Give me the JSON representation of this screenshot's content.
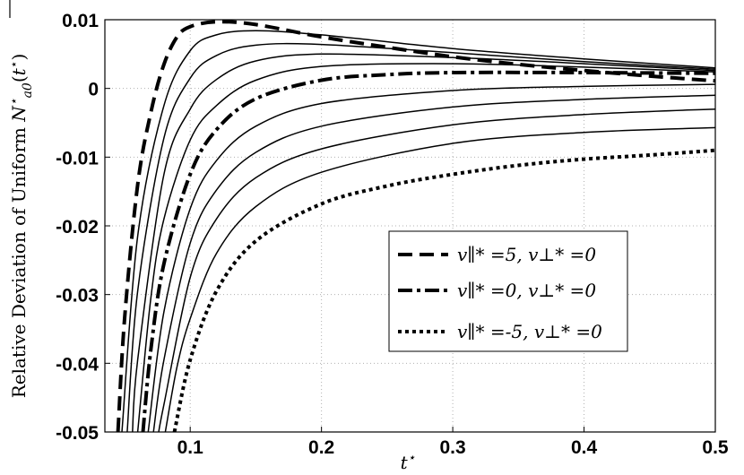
{
  "chart_data": {
    "type": "line",
    "title": "",
    "xlabel": "t*",
    "ylabel": "Relative Deviation of Uniform N̄*a0(t*)",
    "xlim": [
      0.035,
      0.5
    ],
    "ylim": [
      -0.05,
      0.01
    ],
    "xticks": [
      "0.1",
      "0.2",
      "0.3",
      "0.4",
      "0.5"
    ],
    "yticks": [
      "0.01",
      "0",
      "-0.01",
      "-0.02",
      "-0.03",
      "-0.04",
      "-0.05"
    ],
    "grid": true,
    "legend_position": "lower-right",
    "series": [
      {
        "name": "v∥* =5, v⊥* =0",
        "style": "dashed",
        "x": [
          0.045,
          0.05,
          0.06,
          0.07,
          0.08,
          0.09,
          0.1,
          0.12,
          0.15,
          0.2,
          0.25,
          0.3,
          0.35,
          0.4,
          0.45,
          0.5
        ],
        "y": [
          -0.05,
          -0.0335,
          -0.014,
          -0.0035,
          0.0035,
          0.0075,
          0.009,
          0.0097,
          0.0093,
          0.0075,
          0.006,
          0.0046,
          0.0035,
          0.0026,
          0.0018,
          0.0011
        ]
      },
      {
        "name": "",
        "style": "solid",
        "x": [
          0.048,
          0.06,
          0.08,
          0.1,
          0.12,
          0.15,
          0.2,
          0.3,
          0.4,
          0.5
        ],
        "y": [
          -0.05,
          -0.0215,
          -0.0025,
          0.0055,
          0.0078,
          0.0084,
          0.0078,
          0.0058,
          0.0043,
          0.003
        ]
      },
      {
        "name": "",
        "style": "solid",
        "x": [
          0.052,
          0.06,
          0.08,
          0.1,
          0.12,
          0.15,
          0.2,
          0.3,
          0.4,
          0.5
        ],
        "y": [
          -0.05,
          -0.0295,
          -0.0072,
          0.0015,
          0.0048,
          0.0063,
          0.0064,
          0.0052,
          0.0039,
          0.0028
        ]
      },
      {
        "name": "",
        "style": "solid",
        "x": [
          0.056,
          0.06,
          0.08,
          0.1,
          0.12,
          0.15,
          0.2,
          0.3,
          0.4,
          0.5
        ],
        "y": [
          -0.05,
          -0.0395,
          -0.0125,
          -0.003,
          0.0013,
          0.004,
          0.005,
          0.0045,
          0.0036,
          0.0026
        ]
      },
      {
        "name": "",
        "style": "solid",
        "x": [
          0.06,
          0.07,
          0.08,
          0.1,
          0.12,
          0.15,
          0.2,
          0.3,
          0.4,
          0.5
        ],
        "y": [
          -0.05,
          -0.0305,
          -0.019,
          -0.0075,
          -0.0025,
          0.0012,
          0.0032,
          0.0036,
          0.0031,
          0.0024
        ]
      },
      {
        "name": "v∥* =0, v⊥* =0",
        "style": "dashdot",
        "x": [
          0.064,
          0.07,
          0.08,
          0.1,
          0.12,
          0.15,
          0.2,
          0.25,
          0.3,
          0.4,
          0.5
        ],
        "y": [
          -0.05,
          -0.038,
          -0.0255,
          -0.0125,
          -0.006,
          -0.0015,
          0.0012,
          0.002,
          0.0023,
          0.0023,
          0.0022
        ]
      },
      {
        "name": "",
        "style": "solid",
        "x": [
          0.068,
          0.08,
          0.1,
          0.12,
          0.15,
          0.2,
          0.3,
          0.4,
          0.5
        ],
        "y": [
          -0.05,
          -0.0325,
          -0.0175,
          -0.0105,
          -0.0055,
          -0.0022,
          -0.0003,
          0.0003,
          0.0006
        ]
      },
      {
        "name": "",
        "style": "solid",
        "x": [
          0.072,
          0.08,
          0.1,
          0.12,
          0.15,
          0.2,
          0.3,
          0.4,
          0.5
        ],
        "y": [
          -0.05,
          -0.0395,
          -0.0225,
          -0.0148,
          -0.0093,
          -0.0055,
          -0.0027,
          -0.0016,
          -0.001
        ]
      },
      {
        "name": "",
        "style": "solid",
        "x": [
          0.076,
          0.08,
          0.1,
          0.12,
          0.15,
          0.2,
          0.3,
          0.4,
          0.5
        ],
        "y": [
          -0.05,
          -0.046,
          -0.0275,
          -0.019,
          -0.013,
          -0.0088,
          -0.0053,
          -0.0038,
          -0.003
        ]
      },
      {
        "name": "",
        "style": "solid",
        "x": [
          0.081,
          0.09,
          0.1,
          0.12,
          0.15,
          0.2,
          0.3,
          0.4,
          0.5
        ],
        "y": [
          -0.05,
          -0.0405,
          -0.0335,
          -0.024,
          -0.0172,
          -0.0122,
          -0.008,
          -0.0064,
          -0.0057
        ]
      },
      {
        "name": "v∥* =-5, v⊥* =0",
        "style": "dotted",
        "x": [
          0.088,
          0.1,
          0.12,
          0.15,
          0.2,
          0.25,
          0.3,
          0.35,
          0.4,
          0.45,
          0.5
        ],
        "y": [
          -0.05,
          -0.0395,
          -0.0295,
          -0.0222,
          -0.0168,
          -0.0142,
          -0.0125,
          -0.0112,
          -0.0103,
          -0.0097,
          -0.009
        ]
      }
    ]
  }
}
